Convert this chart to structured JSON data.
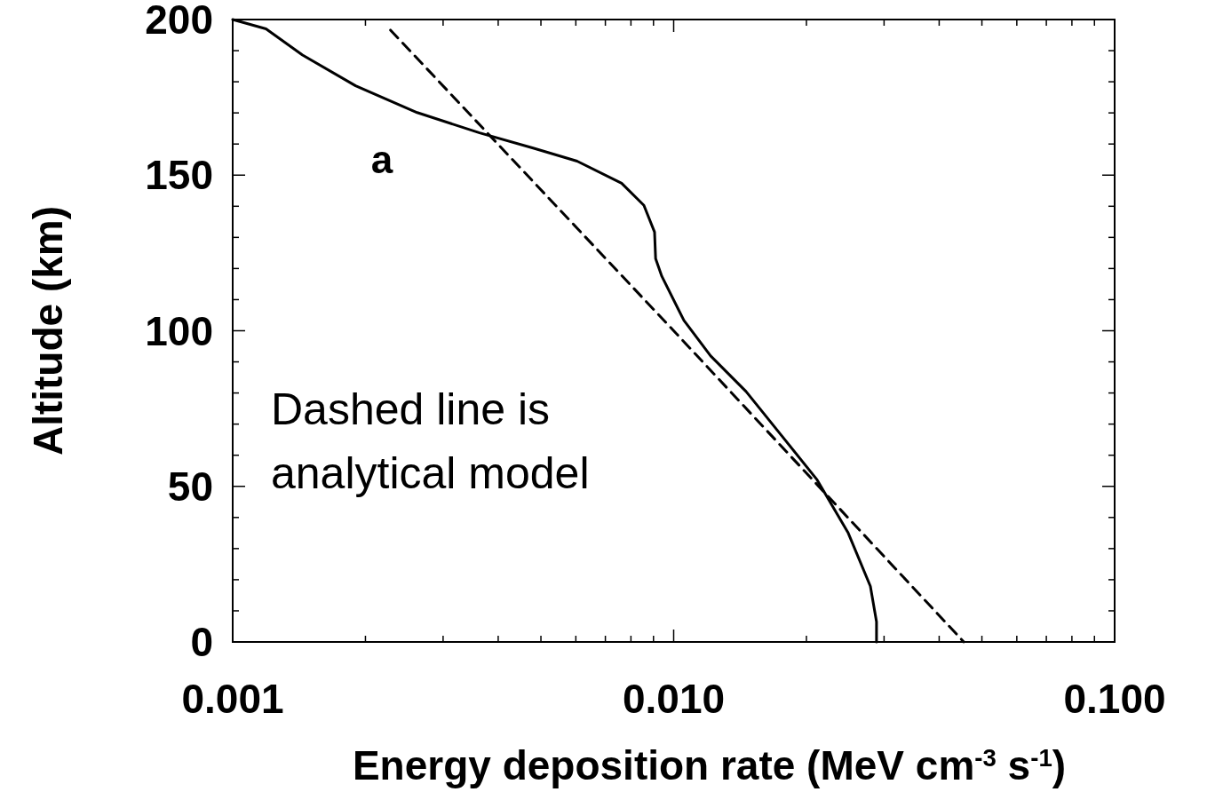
{
  "chart_data": {
    "type": "line",
    "xlabel": "Energy deposition rate (MeV cm$^{-3}$ s$^{-1}$)",
    "ylabel": "Altitude (km)",
    "log": "x",
    "xlim": [
      0.001,
      0.1
    ],
    "ylim": [
      0,
      200
    ],
    "xticks": [
      {
        "value": 0.001,
        "label": "0.001"
      },
      {
        "value": 0.002,
        "label": null
      },
      {
        "value": 0.003,
        "label": null
      },
      {
        "value": 0.004,
        "label": null
      },
      {
        "value": 0.005,
        "label": null
      },
      {
        "value": 0.006,
        "label": null
      },
      {
        "value": 0.007,
        "label": null
      },
      {
        "value": 0.008,
        "label": null
      },
      {
        "value": 0.009,
        "label": null
      },
      {
        "value": 0.01,
        "label": "0.010"
      },
      {
        "value": 0.02,
        "label": null
      },
      {
        "value": 0.03,
        "label": null
      },
      {
        "value": 0.04,
        "label": null
      },
      {
        "value": 0.05,
        "label": null
      },
      {
        "value": 0.06,
        "label": null
      },
      {
        "value": 0.07,
        "label": null
      },
      {
        "value": 0.08,
        "label": null
      },
      {
        "value": 0.09,
        "label": null
      },
      {
        "value": 0.1,
        "label": "0.100"
      }
    ],
    "yticks": [
      0,
      {
        "value": 10,
        "label": null
      },
      {
        "value": 20,
        "label": null
      },
      {
        "value": 30,
        "label": null
      },
      {
        "value": 40,
        "label": null
      },
      50,
      {
        "value": 60,
        "label": null
      },
      {
        "value": 70,
        "label": null
      },
      {
        "value": 80,
        "label": null
      },
      {
        "value": 90,
        "label": null
      },
      100,
      {
        "value": 110,
        "label": null
      },
      {
        "value": 120,
        "label": null
      },
      {
        "value": 130,
        "label": null
      },
      {
        "value": 140,
        "label": null
      },
      150,
      {
        "value": 160,
        "label": null
      },
      {
        "value": 170,
        "label": null
      },
      {
        "value": 180,
        "label": null
      },
      {
        "value": 190,
        "label": null
      },
      200
    ],
    "annotations": [
      "a",
      "Dashed line is analytical model"
    ],
    "series": [
      {
        "color": "#000000",
        "line_style": "solid",
        "x": [
          0.001,
          0.00119,
          0.00144,
          0.0019,
          0.00262,
          0.00363,
          0.0048,
          0.00604,
          0.00762,
          0.00856,
          0.00905,
          0.0091,
          0.0094,
          0.01055,
          0.01213,
          0.01459,
          0.01757,
          0.02115,
          0.02488,
          0.02793,
          0.02884,
          0.02884
        ],
        "values": [
          200,
          197,
          188.6,
          178.7,
          170.1,
          163.6,
          158.7,
          154.5,
          147.4,
          140.3,
          131.7,
          123.2,
          117.5,
          103.3,
          91.9,
          80.5,
          66.3,
          52.1,
          35,
          17.9,
          6.5,
          0
        ]
      },
      {
        "color": "#000000",
        "line_style": "dashed",
        "x": [
          0.00228,
          0.01,
          0.0455
        ],
        "values": [
          196.6,
          100,
          0
        ]
      }
    ]
  }
}
